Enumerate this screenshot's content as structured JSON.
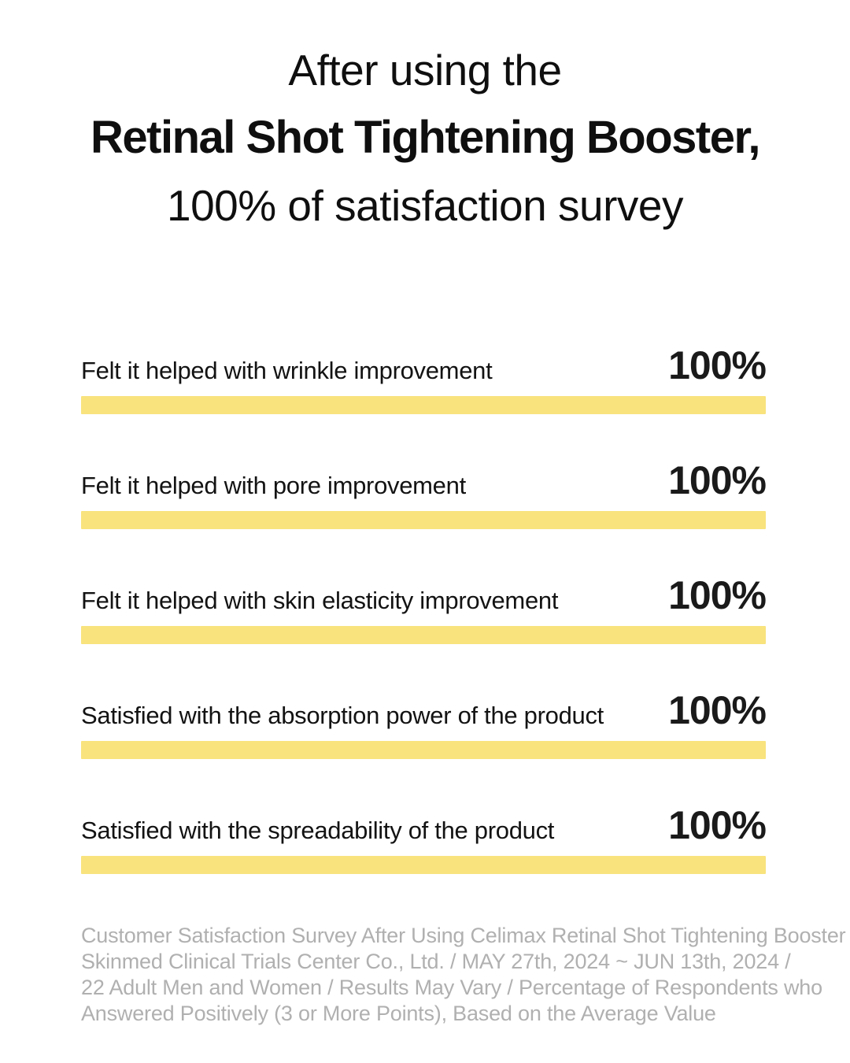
{
  "page": {
    "background_color": "#ffffff",
    "text_color": "#111111"
  },
  "title": {
    "line1": "After using the",
    "line2": "Retinal Shot Tightening Booster,",
    "line3": "100% of satisfaction survey"
  },
  "survey": {
    "bar_color": "#F8E37D",
    "items": [
      {
        "label": "Felt it helped with wrinkle improvement",
        "value": "100%"
      },
      {
        "label": "Felt it helped with pore improvement",
        "value": "100%"
      },
      {
        "label": "Felt it helped with skin elasticity improvement",
        "value": "100%"
      },
      {
        "label": "Satisfied with the absorption power of the product",
        "value": "100%"
      },
      {
        "label": "Satisfied with the spreadability of the product",
        "value": "100%"
      }
    ]
  },
  "footnote": {
    "color": "#b0b0b0",
    "lines": [
      "Customer Satisfaction Survey After Using Celimax Retinal Shot Tightening Booster /",
      "Skinmed Clinical Trials Center Co., Ltd. / MAY 27th, 2024 ~ JUN 13th, 2024 /",
      "22 Adult Men and Women / Results May Vary / Percentage of Respondents who",
      "Answered Positively (3 or More Points), Based on the Average Value"
    ]
  },
  "chart_data": {
    "type": "bar",
    "orientation": "horizontal",
    "categories": [
      "Felt it helped with wrinkle improvement",
      "Felt it helped with pore improvement",
      "Felt it helped with skin elasticity improvement",
      "Satisfied with the absorption power of the product",
      "Satisfied with the spreadability of the product"
    ],
    "values": [
      100,
      100,
      100,
      100,
      100
    ],
    "value_labels": [
      "100%",
      "100%",
      "100%",
      "100%",
      "100%"
    ],
    "value_unit": "%",
    "xlim": [
      0,
      100
    ],
    "title": "After using the Retinal Shot Tightening Booster, 100% of satisfaction survey",
    "xlabel": "",
    "ylabel": "",
    "grid": false,
    "legend": false,
    "bar_color": "#F8E37D"
  }
}
